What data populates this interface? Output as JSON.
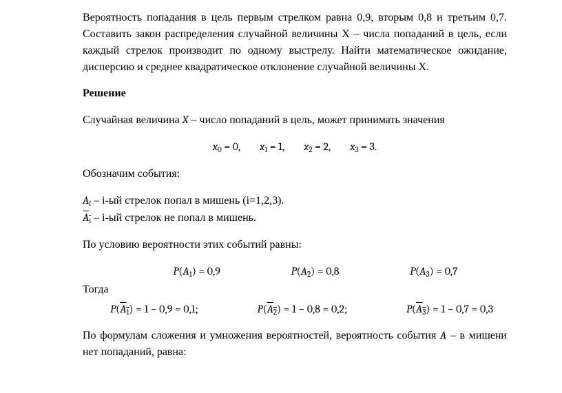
{
  "problem": {
    "text": "Вероятность попадания в цель первым стрелком равна 0,9, вторым 0,8 и третьим 0,7. Составить закон распределения случайной величины  X  – числа попаданий в цель, если каждый стрелок производит по одному выстрелу. Найти математическое ожидание, дисперсию и среднее квадратическое отклонение случайной величины X."
  },
  "solution_heading": "Решение",
  "line_rv": {
    "prefix": "Случайная величина ",
    "var": "X",
    "suffix": " – число попаданий в цель,  может принимать значения"
  },
  "x_values": {
    "x0": "x₀ = 0,",
    "x1": "x₁ = 1,",
    "x2": "x₂ = 2,",
    "x3": "x₃ = 3."
  },
  "events_heading": "Обозначим события:",
  "event_A": " – i-ый стрелок попал в мишень (i=1,2,3).",
  "event_Abar": " – i-ый стрелок не попал в мишень.",
  "event_A_sym_html": "A<span class=\"sub\">i</span>",
  "event_Abar_sym_html": "<span class=\"overline\">A<span class=\"sub\">ı</span></span>",
  "cond_line": "По условию вероятности этих событий равны:",
  "probs": {
    "pA1": "P(A₁) = 0,9",
    "pA2": "P(A₂) = 0,8",
    "pA3": "P(A₃) = 0,7"
  },
  "then": "Тогда",
  "compls": {
    "c1_html": "P(<span class=\"overline\">A₁</span>) = 1 − 0,9 = 0,1;",
    "c2_html": "P(<span class=\"overline\">A₂</span>) = 1 − 0,8 = 0,2;",
    "c3_html": "P(<span class=\"overline\">A₃</span>) = 1 − 0,7 = 0,3"
  },
  "final": {
    "prefix": "По формулам сложения и умножения вероятностей, вероятность события ",
    "var": "A",
    "suffix": " – в мишени нет попаданий, равна:"
  }
}
